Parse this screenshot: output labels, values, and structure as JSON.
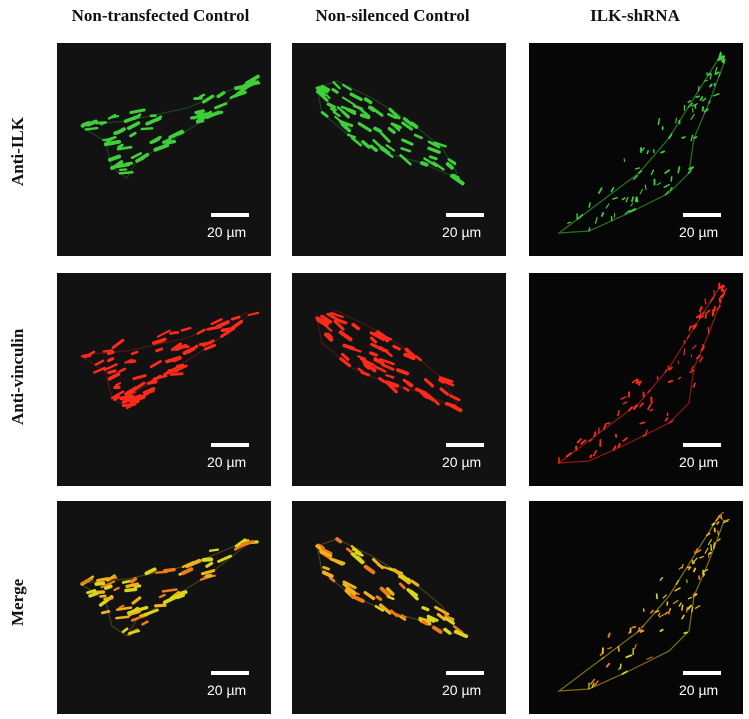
{
  "columns": [
    {
      "label": "Non-transfected Control",
      "spell_flag": "transfected"
    },
    {
      "label": "Non-silenced Control"
    },
    {
      "label": "ILK-shRNA",
      "spell_flag": "shRNA"
    }
  ],
  "rows": [
    {
      "label": "Anti-ILK",
      "channel_color": "#3fcf3a"
    },
    {
      "label": "Anti-vinculin",
      "channel_color": "#ff2a1a"
    },
    {
      "label": "Merge",
      "channel_color": "#e6c81e"
    }
  ],
  "scale_bar_label": "20 µm"
}
